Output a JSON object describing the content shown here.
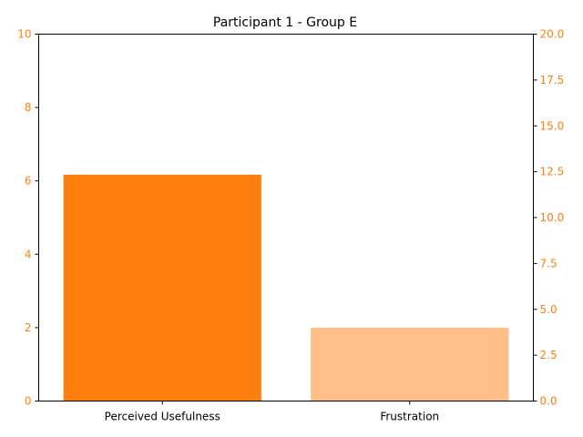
{
  "chart_data": {
    "type": "bar",
    "title": "Participant 1 - Group E",
    "categories": [
      "Perceived Usefulness",
      "Frustration"
    ],
    "values": [
      6.17,
      2.0
    ],
    "bar_colors": [
      "#ff7f0e",
      "#ffbf86"
    ],
    "ylim": [
      0,
      10
    ],
    "yticks": [
      0,
      2,
      4,
      6,
      8,
      10
    ],
    "y2lim": [
      0,
      20
    ],
    "y2ticks": [
      "0.0",
      "2.5",
      "5.0",
      "7.5",
      "10.0",
      "12.5",
      "15.0",
      "17.5",
      "20.0"
    ],
    "tick_color": "#ff7f0e",
    "xlabel": "",
    "ylabel": "",
    "grid": false
  }
}
